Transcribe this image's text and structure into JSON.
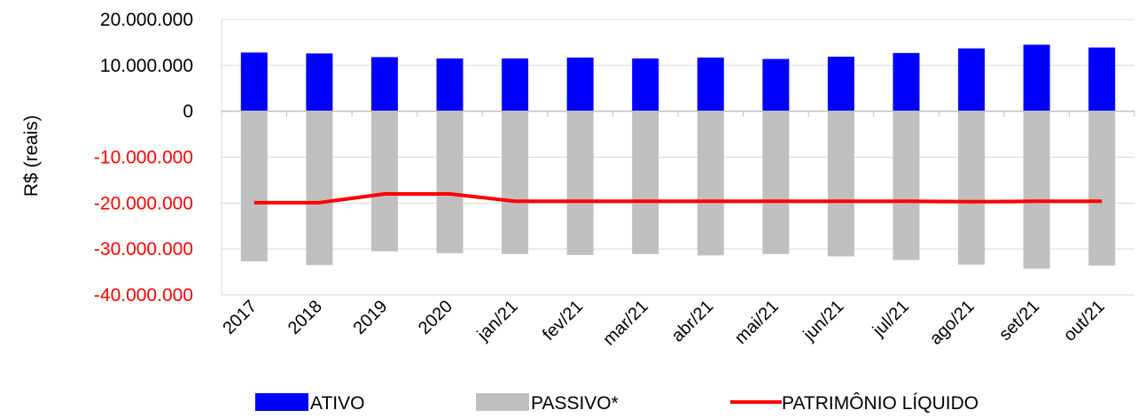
{
  "chart_data": {
    "type": "bar",
    "title": "",
    "xlabel": "",
    "ylabel": "R$ (reais)",
    "ylim": [
      -40000000,
      20000000
    ],
    "yticks": [
      20000000,
      10000000,
      0,
      -10000000,
      -20000000,
      -30000000,
      -40000000
    ],
    "ytick_labels": [
      "20.000.000",
      "10.000.000",
      "0",
      "-10.000.000",
      "-20.000.000",
      "-30.000.000",
      "-40.000.000"
    ],
    "ytick_colors": [
      "#000000",
      "#000000",
      "#000000",
      "#ff0000",
      "#ff0000",
      "#ff0000",
      "#ff0000"
    ],
    "grid": "horizontal",
    "legend_position": "bottom",
    "categories": [
      "2017",
      "2018",
      "2019",
      "2020",
      "jan/21",
      "fev/21",
      "mar/21",
      "abr/21",
      "mai/21",
      "jun/21",
      "jul/21",
      "ago/21",
      "set/21",
      "out/21"
    ],
    "series": [
      {
        "name": "ATIVO",
        "type": "bar",
        "color": "#0000ff",
        "values": [
          12800000,
          12600000,
          11800000,
          11500000,
          11500000,
          11700000,
          11500000,
          11700000,
          11400000,
          11900000,
          12700000,
          13700000,
          14500000,
          13900000
        ]
      },
      {
        "name": "PASSIVO*",
        "type": "bar",
        "color": "#bfbfbf",
        "values": [
          -32700000,
          -33500000,
          -30500000,
          -30900000,
          -31100000,
          -31300000,
          -31100000,
          -31400000,
          -31100000,
          -31600000,
          -32400000,
          -33400000,
          -34300000,
          -33600000
        ]
      },
      {
        "name": "PATRIMÔNIO LÍQUIDO",
        "type": "line",
        "color": "#ff0000",
        "values": [
          -19900000,
          -19900000,
          -18000000,
          -18000000,
          -19600000,
          -19600000,
          -19600000,
          -19600000,
          -19600000,
          -19600000,
          -19600000,
          -19700000,
          -19600000,
          -19600000
        ]
      }
    ]
  }
}
